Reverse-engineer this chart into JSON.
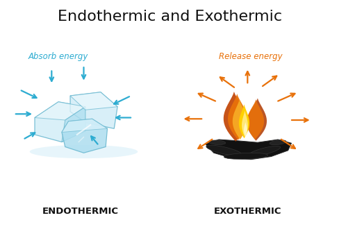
{
  "title": "Endothermic and Exothermic",
  "title_fontsize": 16,
  "bg_color": "#ffffff",
  "left_label": "ENDOTHERMIC",
  "right_label": "EXOTHERMIC",
  "label_fontsize": 9.5,
  "absorb_text": "Absorb energy",
  "release_text": "Release energy",
  "absorb_color": "#2dacd1",
  "release_color": "#e8710a",
  "ice_color_light": "#d4eef8",
  "ice_color_mid": "#b0dff0",
  "ice_color_main": "#8dcfe8",
  "ice_color_edge": "#6ab8d0",
  "ice_color_dark": "#5aaec8",
  "fire_orange_outer": "#cc4400",
  "fire_orange_mid": "#e8710a",
  "fire_yellow_outer": "#f5a623",
  "fire_yellow_mid": "#ffe066",
  "fire_white": "#fff9cc",
  "coal_dark": "#111111",
  "coal_mid": "#222222",
  "coal_light": "#333333",
  "arrow_blue": "#2dacd1",
  "arrow_orange": "#e8710a"
}
